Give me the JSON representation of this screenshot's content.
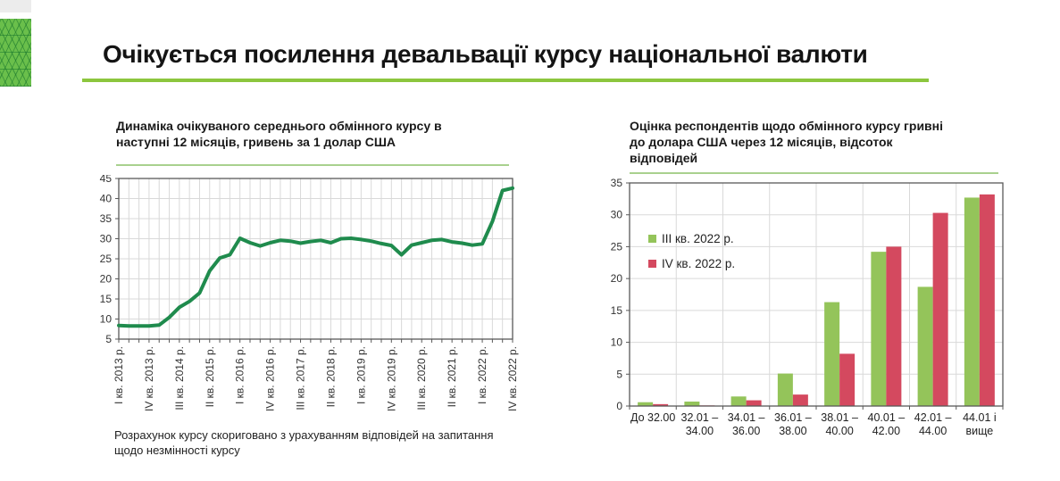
{
  "slide": {
    "title": "Очікується посилення девальвації курсу національної валюти"
  },
  "left_panel": {
    "title": "Динаміка очікуваного середнього обмінного курсу в\nнаступні 12 місяців, гривень за 1 долар США",
    "footnote": "Розрахунок курсу скориговано з урахуванням відповідей на запитання\nщодо незмінності курсу"
  },
  "right_panel": {
    "title": "Оцінка респондентів щодо обмінного курсу гривні\nдо долара США через 12 місяців, відсоток\nвідповідей"
  },
  "colors": {
    "accent_rule": "#8cc63e",
    "chart_underline": "#a9d18e",
    "line_series": "#1f8b4d",
    "bar_series_q3": "#94c45a",
    "bar_series_q4": "#d4495f",
    "grid": "#d9d9d9",
    "axis_frame": "#595959",
    "logo_green": "#6abf4b",
    "corner_strip_gray": "#ececec"
  },
  "chart_data": [
    {
      "type": "line",
      "title": "Динаміка очікуваного середнього обмінного курсу в наступні 12 місяців, гривень за 1 долар США",
      "ylabel": "",
      "xlabel": "",
      "ylim": [
        5,
        45
      ],
      "ytick_step": 5,
      "grid": true,
      "x_tick_every": 3,
      "x_tick_labels": [
        "І кв. 2013 р.",
        "IV кв. 2013 р.",
        "ІІІ кв. 2014 р.",
        "ІІ кв. 2015 р.",
        "І кв. 2016 р.",
        "IV кв. 2016 р.",
        "ІІІ кв. 2017 р.",
        "ІІ кв. 2018 р.",
        "І кв. 2019 р.",
        "IV кв. 2019 р.",
        "ІІІ кв. 2020 р.",
        "ІІ кв. 2021 р.",
        "І кв. 2022 р.",
        "IV кв. 2022 р."
      ],
      "values": [
        8.4,
        8.3,
        8.3,
        8.3,
        8.5,
        10.4,
        12.9,
        14.4,
        16.5,
        22.0,
        25.2,
        26.0,
        30.1,
        29.0,
        28.2,
        29.0,
        29.6,
        29.4,
        28.9,
        29.3,
        29.6,
        29.0,
        30.0,
        30.1,
        29.8,
        29.4,
        28.8,
        28.3,
        26.0,
        28.4,
        29.0,
        29.6,
        29.8,
        29.2,
        28.9,
        28.4,
        28.7,
        34.3,
        42.0,
        42.6
      ],
      "footnote": "Розрахунок курсу скориговано з урахуванням відповідей на запитання щодо незмінності курсу"
    },
    {
      "type": "bar",
      "title": "Оцінка респондентів щодо обмінного курсу гривні до долара США через 12 місяців, відсоток відповідей",
      "ylim": [
        0,
        35
      ],
      "ytick_step": 5,
      "grid": true,
      "legend_position": "upper-left-inside",
      "categories": [
        [
          "До 32.00"
        ],
        [
          "32.01 –",
          "34.00"
        ],
        [
          "34.01 –",
          "36.00"
        ],
        [
          "36.01 –",
          "38.00"
        ],
        [
          "38.01 –",
          "40.00"
        ],
        [
          "40.01 –",
          "42.00"
        ],
        [
          "42.01 –",
          "44.00"
        ],
        [
          "44.01 і",
          "вище"
        ]
      ],
      "series": [
        {
          "name": "ІІІ кв. 2022 р.",
          "color": "#94c45a",
          "values": [
            0.6,
            0.7,
            1.5,
            5.1,
            16.3,
            24.2,
            18.7,
            32.7
          ]
        },
        {
          "name": "IV кв. 2022 р.",
          "color": "#d4495f",
          "values": [
            0.3,
            0.1,
            0.9,
            1.8,
            8.2,
            25.0,
            30.3,
            33.2
          ]
        }
      ]
    }
  ]
}
